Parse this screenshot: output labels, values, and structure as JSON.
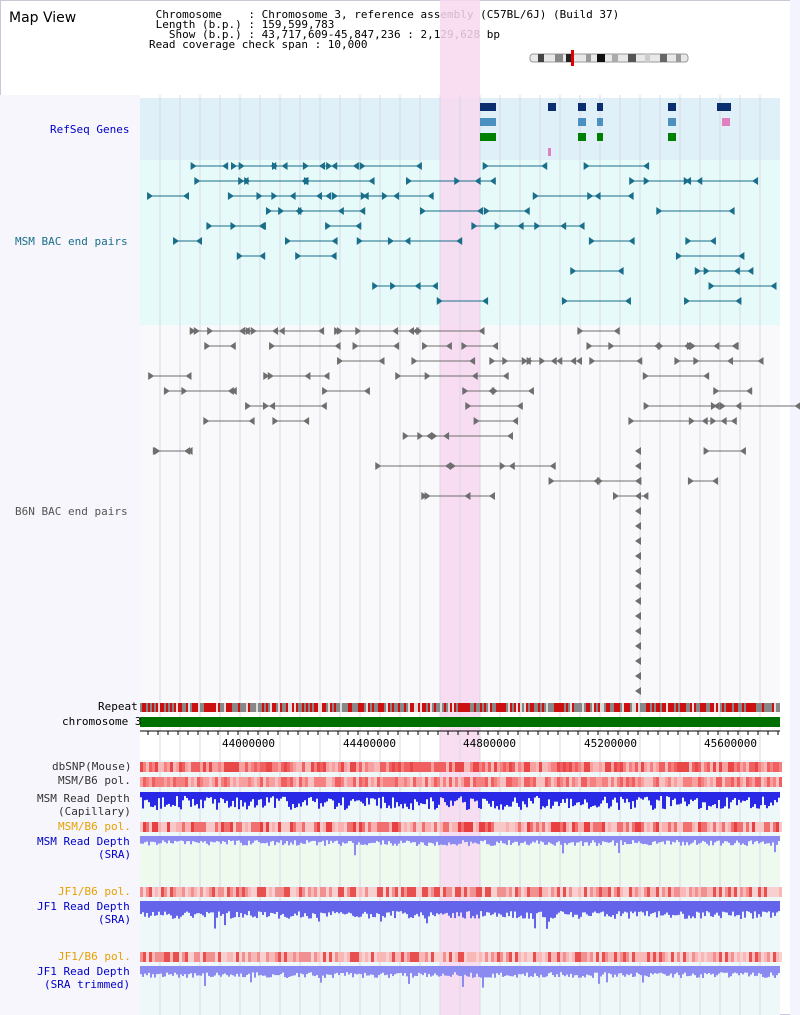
{
  "title": "Map View",
  "info": {
    "chromosome": " Chromosome    : Chromosome 3, reference assembly (C57BL/6J) (Build 37)",
    "length": " Length (b.p.) : 159,599,783",
    "show": "   Show (b.p.) : 43,717,609-45,847,236 : 2,129,628 bp",
    "coverage": "Read coverage check span : 10,000"
  },
  "tracks": {
    "refseq": "RefSeq Genes",
    "msm_bac": "MSM BAC end pairs",
    "b6n_bac": "B6N BAC end pairs",
    "repeat": "Repeat",
    "chromosome": "chromosome 3",
    "dbsnp": "dbSNP(Mouse)",
    "msm_b6_pol_1": "MSM/B6 pol.",
    "msm_depth_cap_1": "MSM Read Depth",
    "msm_depth_cap_2": "(Capillary)",
    "msm_b6_pol_2": "MSM/B6 pol.",
    "msm_depth_sra_1": "MSM Read Depth",
    "msm_depth_sra_2": "(SRA)",
    "jf1_pol_1": "JF1/B6 pol.",
    "jf1_depth_sra_1": "JF1 Read Depth",
    "jf1_depth_sra_2": "(SRA)",
    "jf1_pol_2": "JF1/B6 pol.",
    "jf1_depth_trim_1": "JF1 Read Depth",
    "jf1_depth_trim_2": "(SRA trimmed)"
  },
  "axis": {
    "ticks": [
      "44000000",
      "44400000",
      "44800000",
      "45200000",
      "45600000"
    ]
  },
  "colors": {
    "refseq_bg": "#dff0f8",
    "msm_bg": "#e6fafa",
    "highlight": "#f8d8f0",
    "chromosome_bar": "#007000",
    "msm_feature": "#1a6e8a",
    "b6n_feature": "#6e6e6e",
    "depth_blue": "#2828e6",
    "depth_light": "#8a8af0",
    "label_blue": "#0000c8",
    "label_teal": "#1a6e8a",
    "label_orange": "#e6a000"
  }
}
